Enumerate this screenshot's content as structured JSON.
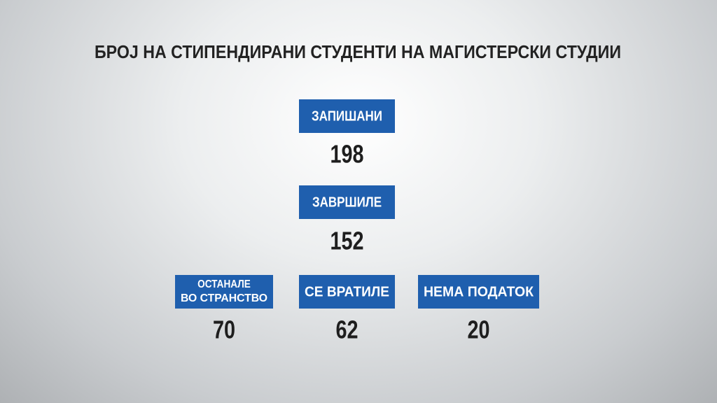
{
  "title": "БРОЈ НА СТИПЕНДИРАНИ СТУДЕНТИ НА МАГИСТЕРСКИ СТУДИИ",
  "items": [
    {
      "label_lines": [
        "ЗАПИШАНИ"
      ],
      "value": 198
    },
    {
      "label_lines": [
        "ЗАВРШИЛЕ"
      ],
      "value": 152
    },
    {
      "label_lines": [
        "ОСТАНАЛЕ",
        "ВО СТРАНСТВО"
      ],
      "value": 70
    },
    {
      "label_lines": [
        "СЕ ВРАТИЛЕ"
      ],
      "value": 62
    },
    {
      "label_lines": [
        "НЕМА ПОДАТОК"
      ],
      "value": 20
    }
  ]
}
